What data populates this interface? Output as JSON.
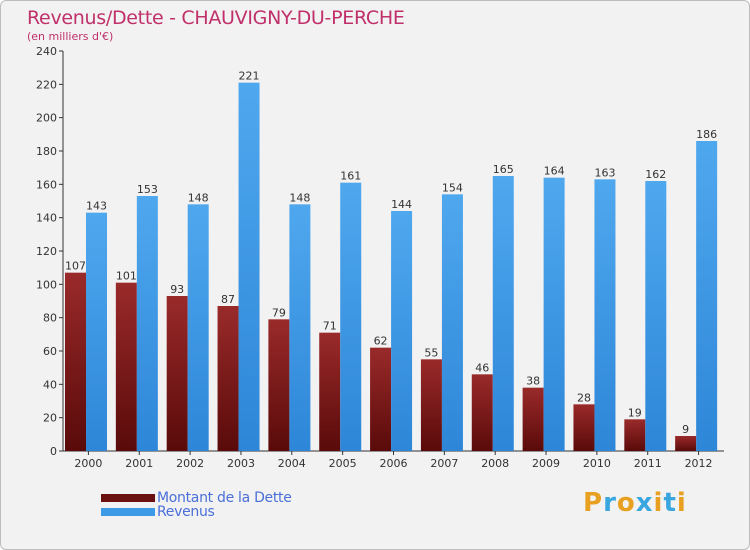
{
  "header": {
    "title": "Revenus/Dette - CHAUVIGNY-DU-PERCHE",
    "subtitle": "(en milliers d'€)"
  },
  "legend": [
    {
      "label": "Montant de la Dette",
      "color": "#7a1a1a"
    },
    {
      "label": "Revenus",
      "color": "#3d9ae6"
    }
  ],
  "brand": {
    "letters": [
      "P",
      "r",
      "o",
      "x",
      "i",
      "t",
      "i"
    ],
    "colors": [
      "#e8a020",
      "#3aa6e0",
      "#e8a020",
      "#3aa6e0",
      "#e8a020",
      "#3aa6e0",
      "#e8a020"
    ]
  },
  "chart_data": {
    "type": "bar",
    "title": "Revenus/Dette - CHAUVIGNY-DU-PERCHE",
    "subtitle": "(en milliers d'€)",
    "categories": [
      "2000",
      "2001",
      "2002",
      "2003",
      "2004",
      "2005",
      "2006",
      "2007",
      "2008",
      "2009",
      "2010",
      "2011",
      "2012"
    ],
    "series": [
      {
        "name": "Montant de la Dette",
        "color": "#7a1a1a",
        "values": [
          107,
          101,
          93,
          87,
          79,
          71,
          62,
          55,
          46,
          38,
          28,
          19,
          9
        ]
      },
      {
        "name": "Revenus",
        "color": "#3d9ae6",
        "values": [
          143,
          153,
          148,
          221,
          148,
          161,
          144,
          154,
          165,
          164,
          163,
          162,
          186
        ]
      }
    ],
    "yticks": [
      0,
      20,
      40,
      60,
      80,
      100,
      120,
      140,
      160,
      180,
      200,
      220,
      240
    ],
    "ylim": [
      0,
      240
    ],
    "grid": false,
    "legend_position": "bottom-left"
  }
}
